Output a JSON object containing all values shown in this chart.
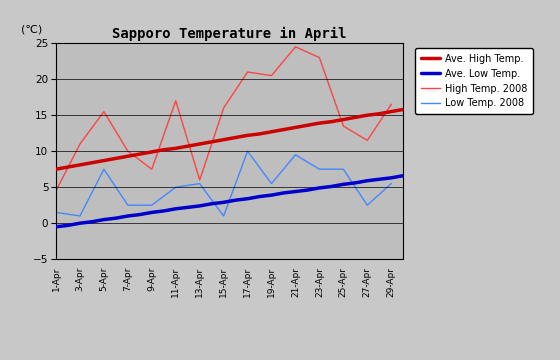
{
  "title": "Sapporo Temperature in April",
  "ylabel": "(℃)",
  "ylim": [
    -5,
    25
  ],
  "yticks": [
    -5,
    0,
    5,
    10,
    15,
    20,
    25
  ],
  "x_tick_labels": [
    "1-Apr",
    "3-Apr",
    "5-Apr",
    "7-Apr",
    "9-Apr",
    "11-Apr",
    "13-Apr",
    "15-Apr",
    "17-Apr",
    "19-Apr",
    "21-Apr",
    "23-Apr",
    "25-Apr",
    "27-Apr",
    "29-Apr"
  ],
  "ave_high": [
    7.5,
    7.8,
    8.1,
    8.4,
    8.7,
    9.0,
    9.3,
    9.6,
    9.9,
    10.2,
    10.4,
    10.7,
    11.0,
    11.3,
    11.6,
    11.9,
    12.2,
    12.4,
    12.7,
    13.0,
    13.3,
    13.6,
    13.9,
    14.1,
    14.4,
    14.7,
    15.0,
    15.2,
    15.5,
    15.8
  ],
  "ave_low": [
    -0.5,
    -0.3,
    0.0,
    0.2,
    0.5,
    0.7,
    1.0,
    1.2,
    1.5,
    1.7,
    2.0,
    2.2,
    2.4,
    2.7,
    2.9,
    3.2,
    3.4,
    3.7,
    3.9,
    4.2,
    4.4,
    4.6,
    4.9,
    5.1,
    5.4,
    5.6,
    5.9,
    6.1,
    6.3,
    6.6
  ],
  "high_2008": [
    4.5,
    11.0,
    11.0,
    15.5,
    15.5,
    10.0,
    10.0,
    7.5,
    7.5,
    17.0,
    17.0,
    6.0,
    6.0,
    16.0,
    16.0,
    21.0,
    21.0,
    20.5,
    20.5,
    24.5,
    24.5,
    23.0,
    23.0,
    13.5,
    13.5,
    11.5,
    11.5,
    16.5,
    16.5,
    16.5
  ],
  "low_2008": [
    1.5,
    1.0,
    1.0,
    7.5,
    7.5,
    2.5,
    2.5,
    2.5,
    2.5,
    5.0,
    5.0,
    5.5,
    5.5,
    1.0,
    1.0,
    10.0,
    10.0,
    5.5,
    5.5,
    9.5,
    9.5,
    7.5,
    7.5,
    7.5,
    7.5,
    2.5,
    2.5,
    5.5,
    5.5,
    5.5
  ],
  "high_2008_x": [
    1,
    2,
    3,
    4,
    5,
    6,
    7,
    8,
    9,
    10,
    11,
    12,
    13,
    14,
    15,
    16,
    17,
    18,
    19,
    20,
    21,
    22,
    23,
    24,
    25,
    26,
    27,
    28,
    29,
    30
  ],
  "low_2008_x": [
    1,
    2,
    3,
    4,
    5,
    6,
    7,
    8,
    9,
    10,
    11,
    12,
    13,
    14,
    15,
    16,
    17,
    18,
    19,
    20,
    21,
    22,
    23,
    24,
    25,
    26,
    27,
    28,
    29,
    30
  ],
  "ave_high_color": "#cc0000",
  "ave_low_color": "#0000cc",
  "high_2008_color": "#ff4444",
  "low_2008_color": "#4488ff",
  "bg_color": "#bebebe",
  "outer_bg": "#c8c8c8",
  "ave_high_lw": 2.5,
  "ave_low_lw": 2.5,
  "high_2008_lw": 1.0,
  "low_2008_lw": 1.0
}
